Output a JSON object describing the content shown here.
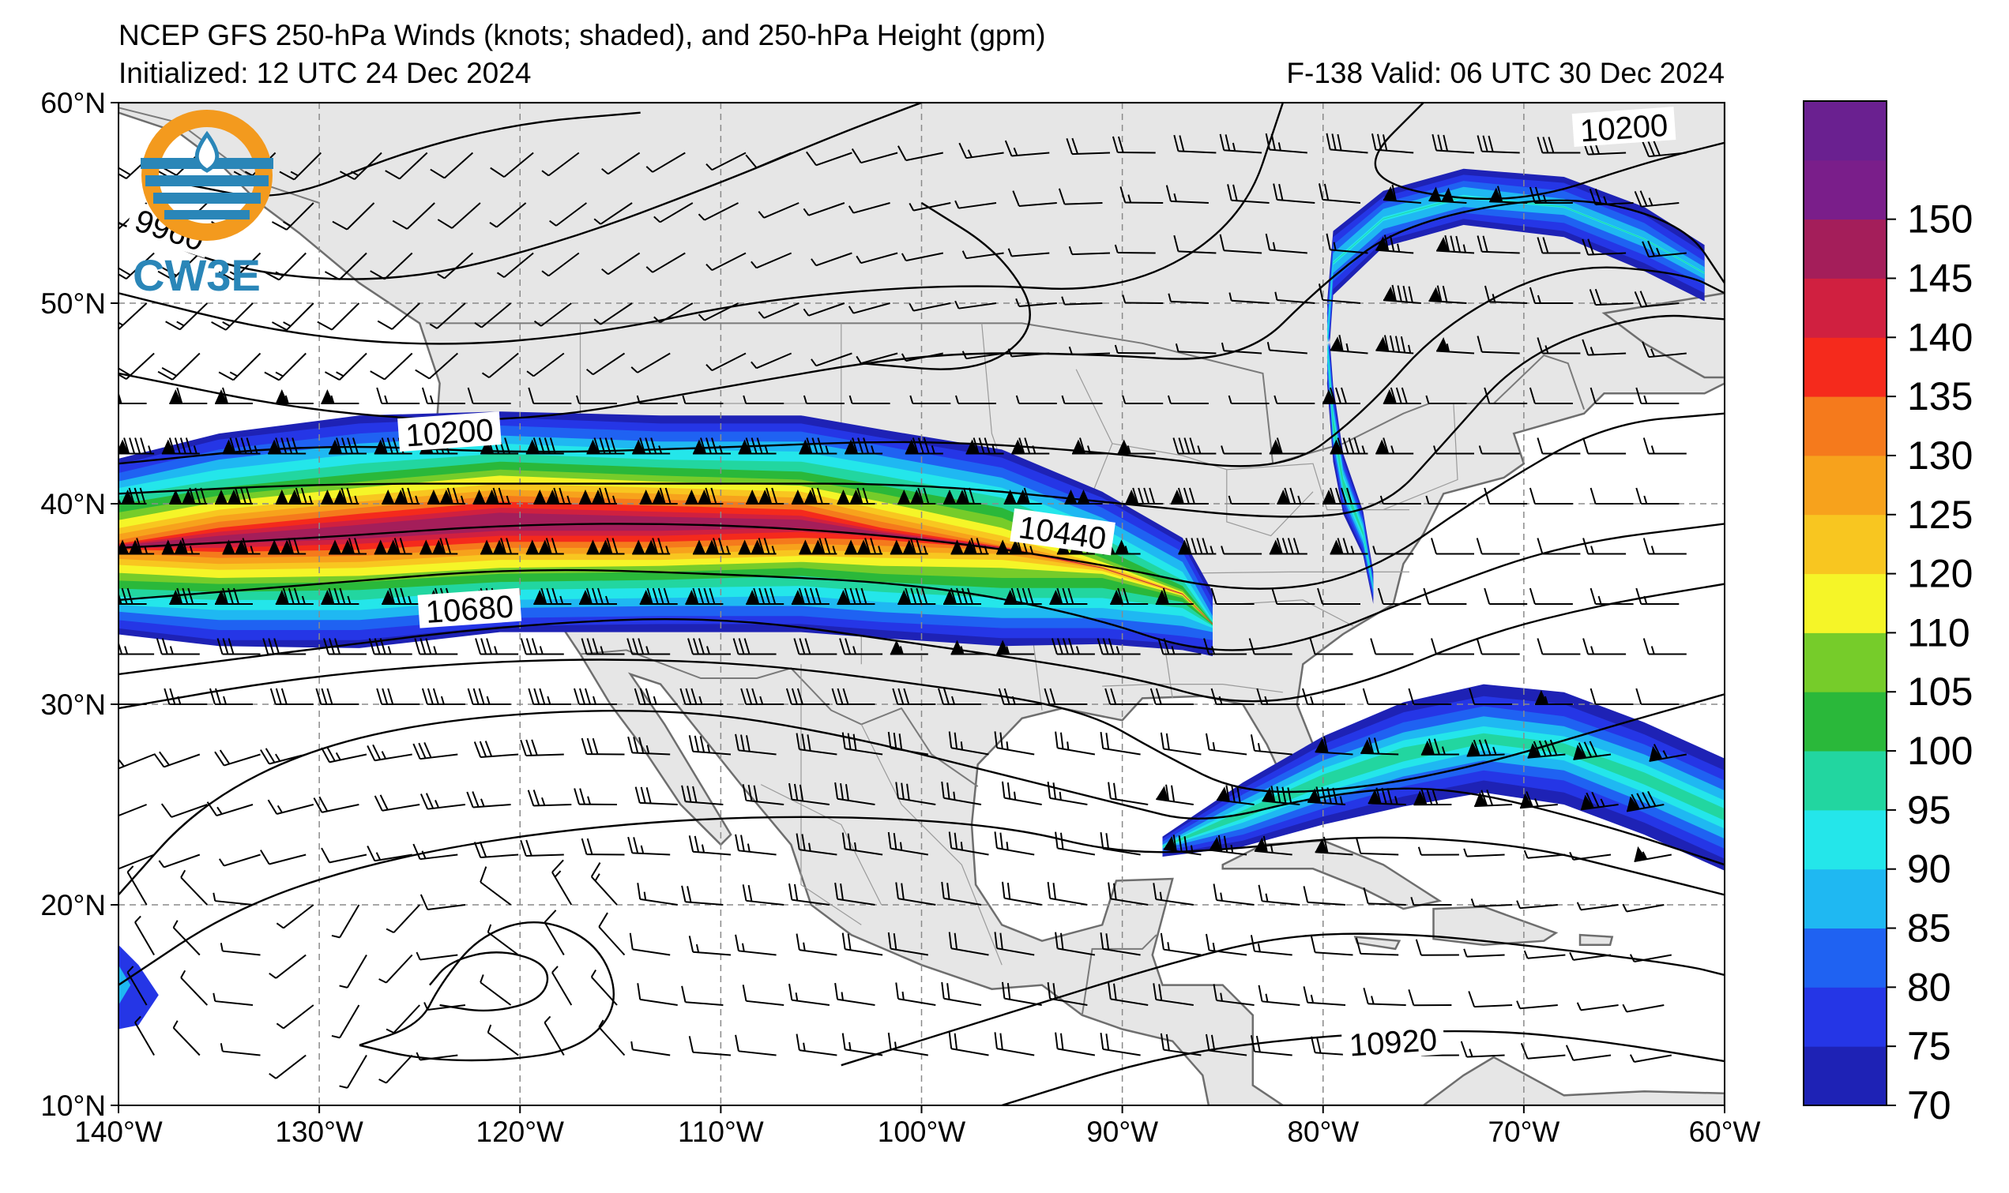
{
  "title": "NCEP GFS 250-hPa Winds (knots; shaded), and 250-hPa Height (gpm)",
  "initialized": "Initialized: 12 UTC 24 Dec 2024",
  "valid": "F-138  Valid: 06 UTC 30 Dec 2024",
  "logo": {
    "text": "CW3E",
    "colors": {
      "orange": "#f39a1e",
      "blue": "#2a86b8"
    }
  },
  "map": {
    "lon_range": [
      -140,
      -60
    ],
    "lat_range": [
      10,
      60
    ],
    "lon_ticks": [
      {
        "value": -140,
        "label": "140°W"
      },
      {
        "value": -130,
        "label": "130°W"
      },
      {
        "value": -120,
        "label": "120°W"
      },
      {
        "value": -110,
        "label": "110°W"
      },
      {
        "value": -100,
        "label": "100°W"
      },
      {
        "value": -90,
        "label": "90°W"
      },
      {
        "value": -80,
        "label": "80°W"
      },
      {
        "value": -70,
        "label": "70°W"
      },
      {
        "value": -60,
        "label": "60°W"
      }
    ],
    "lat_ticks": [
      {
        "value": 60,
        "label": "60°N"
      },
      {
        "value": 50,
        "label": "50°N"
      },
      {
        "value": 40,
        "label": "40°N"
      },
      {
        "value": 30,
        "label": "30°N"
      },
      {
        "value": 20,
        "label": "20°N"
      },
      {
        "value": 10,
        "label": "10°N"
      }
    ],
    "land_color": "#e6e6e6",
    "grid": true
  },
  "contour_labels": [
    {
      "text": "9960",
      "lon": -137.5,
      "lat": 53.5
    },
    {
      "text": "10200",
      "lon": -123.5,
      "lat": 43.4
    },
    {
      "text": "10440",
      "lon": -93,
      "lat": 38.4
    },
    {
      "text": "10680",
      "lon": -122.5,
      "lat": 34.6
    },
    {
      "text": "10200",
      "lon": -65,
      "lat": 58.6
    },
    {
      "text": "10920",
      "lon": -76.5,
      "lat": 13
    }
  ],
  "colorbar": {
    "levels": [
      {
        "value": 70,
        "label": "70",
        "color": "#1e22b5"
      },
      {
        "value": 75,
        "label": "75",
        "color": "#2536e6"
      },
      {
        "value": 80,
        "label": "80",
        "color": "#1f62f2"
      },
      {
        "value": 85,
        "label": "85",
        "color": "#1fb8f2"
      },
      {
        "value": 90,
        "label": "90",
        "color": "#24e6ea"
      },
      {
        "value": 95,
        "label": "95",
        "color": "#22d6a0"
      },
      {
        "value": 100,
        "label": "100",
        "color": "#2ab83a"
      },
      {
        "value": 105,
        "label": "105",
        "color": "#76cc2a"
      },
      {
        "value": 110,
        "label": "110",
        "color": "#f5f528"
      },
      {
        "value": 120,
        "label": "120",
        "color": "#f8c620"
      },
      {
        "value": 125,
        "label": "125",
        "color": "#f7a21c"
      },
      {
        "value": 130,
        "label": "130",
        "color": "#f57a1c"
      },
      {
        "value": 135,
        "label": "135",
        "color": "#f52a1c"
      },
      {
        "value": 140,
        "label": "140",
        "color": "#d02040"
      },
      {
        "value": 145,
        "label": "145",
        "color": "#a41e5a"
      },
      {
        "value": 150,
        "label": "150",
        "color": "#7a1e8a"
      },
      {
        "value": 155,
        "label": "",
        "color": "#6a2090"
      }
    ]
  }
}
